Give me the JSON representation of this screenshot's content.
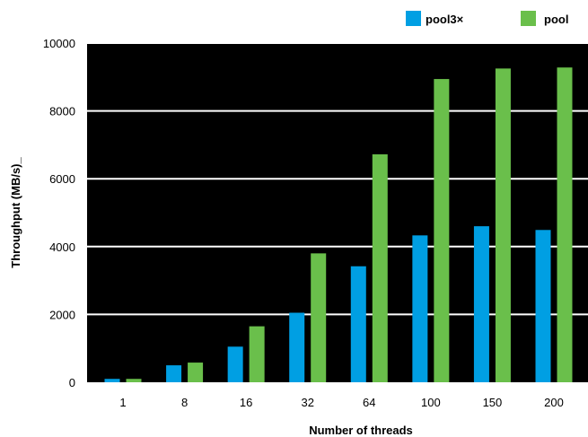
{
  "chart_data": {
    "type": "bar",
    "title": "",
    "xlabel": "Number of threads",
    "ylabel": "Throughput (MB/s)_",
    "categories": [
      "1",
      "8",
      "16",
      "32",
      "64",
      "100",
      "150",
      "200"
    ],
    "series": [
      {
        "name": "pool3×",
        "color": "#009fe3",
        "values": [
          100,
          500,
          1050,
          2050,
          3420,
          4330,
          4600,
          4490
        ]
      },
      {
        "name": "pool",
        "color": "#6abf4b",
        "values": [
          100,
          580,
          1650,
          3800,
          6720,
          8940,
          9250,
          9280
        ]
      }
    ],
    "ylim": [
      0,
      10000
    ],
    "yticks": [
      0,
      2000,
      4000,
      6000,
      8000,
      10000
    ],
    "grid": true,
    "legend_position": "top-right",
    "plot_background": "#000000",
    "grid_color": "#ffffff"
  }
}
